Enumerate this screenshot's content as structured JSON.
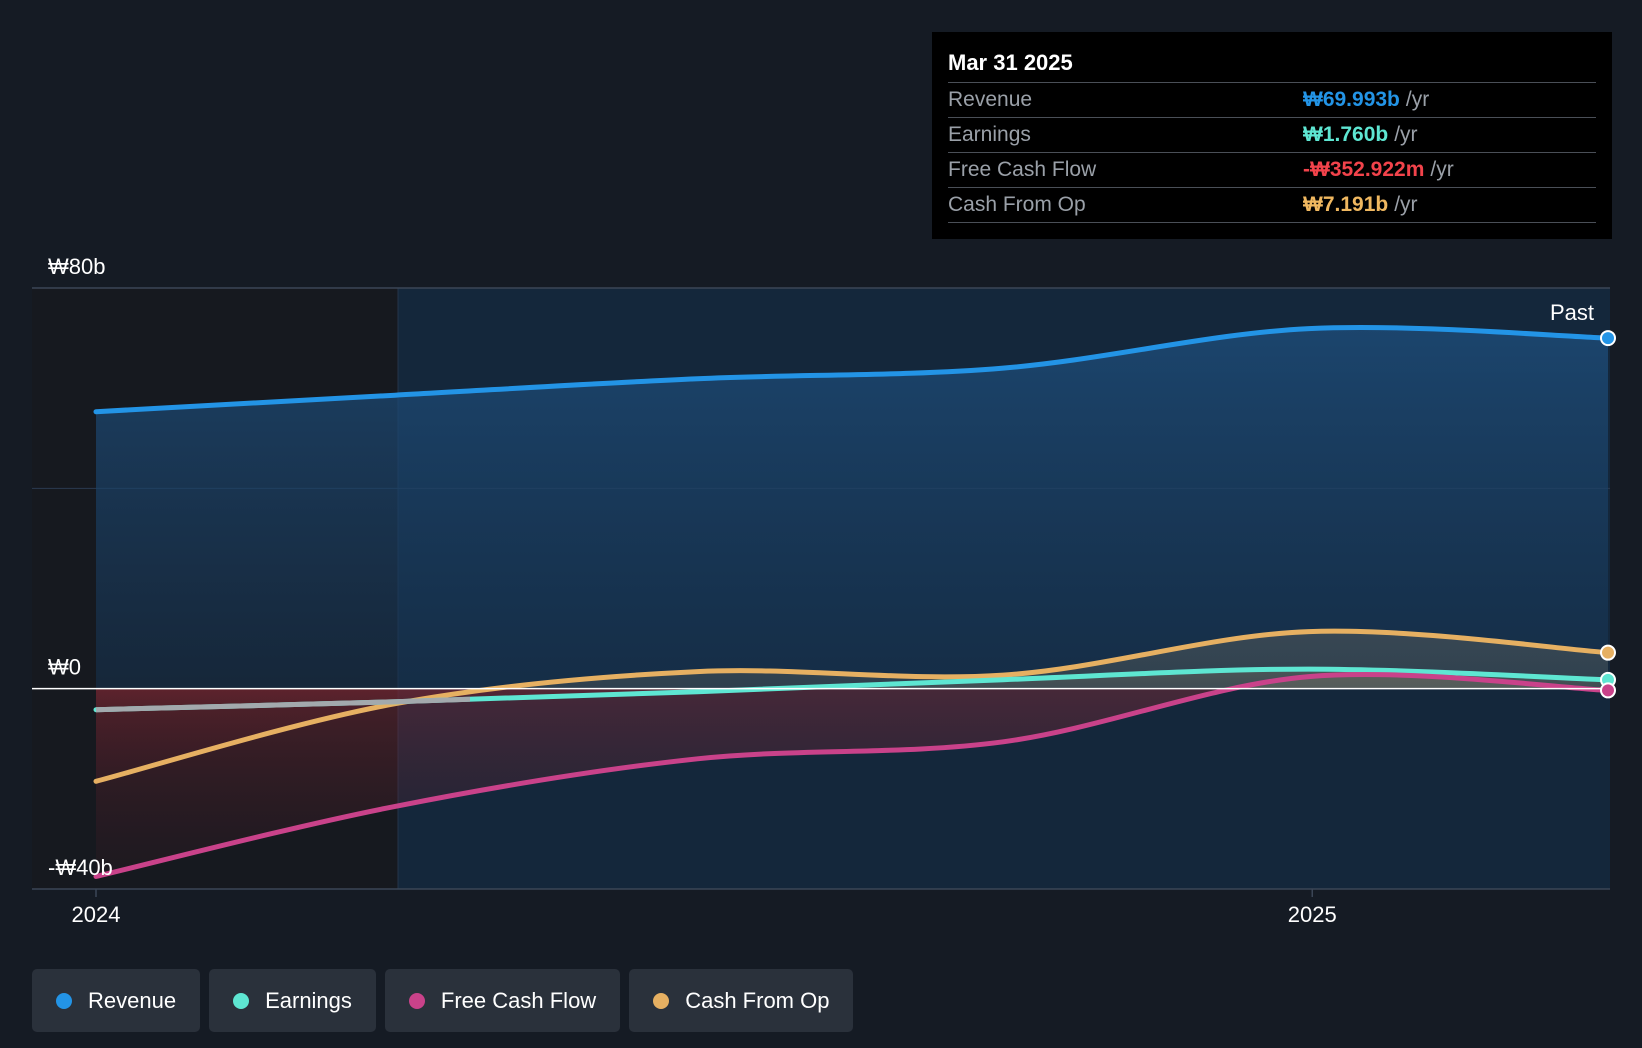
{
  "tooltip": {
    "date": "Mar 31 2025",
    "rows": [
      {
        "label": "Revenue",
        "value": "₩69.993b",
        "unit": "/yr",
        "color": "#2394e6"
      },
      {
        "label": "Earnings",
        "value": "₩1.760b",
        "unit": "/yr",
        "color": "#5ee6d2"
      },
      {
        "label": "Free Cash Flow",
        "value": "-₩352.922m",
        "unit": "/yr",
        "color": "#f2434b"
      },
      {
        "label": "Cash From Op",
        "value": "₩7.191b",
        "unit": "/yr",
        "color": "#f0b860"
      }
    ]
  },
  "legend": [
    {
      "label": "Revenue",
      "color": "#2394e6"
    },
    {
      "label": "Earnings",
      "color": "#5ee6d2"
    },
    {
      "label": "Free Cash Flow",
      "color": "#c9428a"
    },
    {
      "label": "Cash From Op",
      "color": "#e6b062"
    }
  ],
  "chart_data": {
    "type": "line",
    "x": [
      "2024-01-01",
      "2024-03-31",
      "2024-06-30",
      "2024-09-30",
      "2024-12-31",
      "2025-03-31"
    ],
    "xticks": [
      {
        "label": "2024",
        "value": "2024-01-01"
      },
      {
        "label": "2025",
        "value": "2025-01-01"
      }
    ],
    "yticks": [
      {
        "label": "₩80b",
        "value": 80
      },
      {
        "label": "₩0",
        "value": 0
      },
      {
        "label": "-₩40b",
        "value": -40
      }
    ],
    "ylim": [
      -40,
      80
    ],
    "y_unit": "₩ billions",
    "past_label": "Past",
    "grid": true,
    "series": [
      {
        "name": "Revenue",
        "color": "#2394e6",
        "values": [
          55.3,
          58.6,
          61.9,
          64.0,
          71.9,
          70.0
        ]
      },
      {
        "name": "Earnings",
        "color": "#5ee6d2",
        "values": [
          -4.2,
          -2.6,
          -0.6,
          1.8,
          3.9,
          1.76
        ]
      },
      {
        "name": "Free Cash Flow",
        "color": "#c9428a",
        "values": [
          -37.5,
          -23.5,
          -14.0,
          -10.6,
          2.4,
          -0.35
        ]
      },
      {
        "name": "Cash From Op",
        "color": "#e6b062",
        "values": [
          -18.5,
          -3.0,
          3.4,
          2.7,
          11.4,
          7.19
        ]
      }
    ]
  }
}
